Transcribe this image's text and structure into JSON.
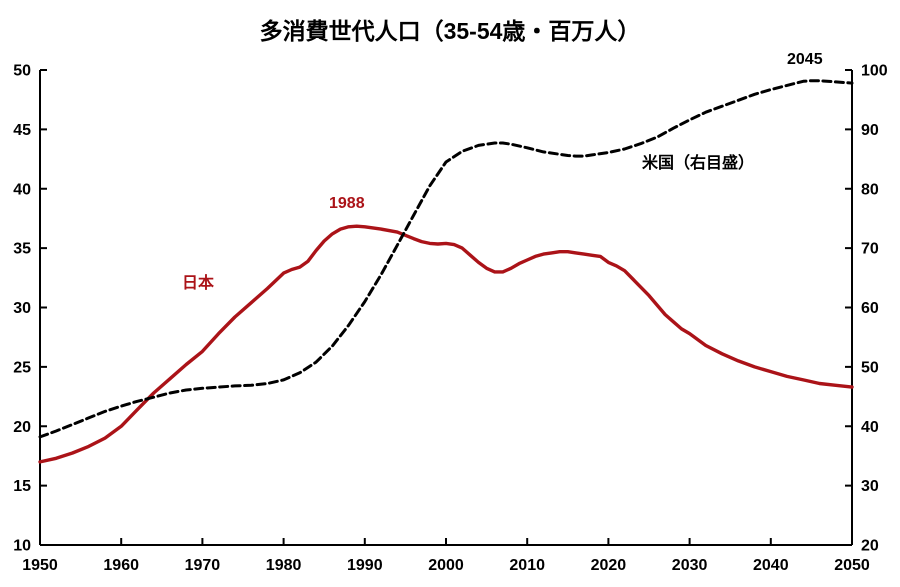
{
  "title": "多消費世代人口（35-54歳・百万人）",
  "annotations": {
    "japan_peak_year": "1988",
    "japan_label": "日本",
    "us_label": "米国（右目盛）",
    "us_peak_year": "2045"
  },
  "colors": {
    "japan_line": "#AB1318",
    "us_line": "#000000",
    "axis": "#000000",
    "background": "#ffffff"
  },
  "chart_data": {
    "type": "line",
    "title": "多消費世代人口（35-54歳・百万人）",
    "grid": "off",
    "legend": "inline-annotations",
    "x_axis": {
      "min": 1950,
      "max": 2050,
      "ticks": [
        1950,
        1960,
        1970,
        1980,
        1990,
        2000,
        2010,
        2020,
        2030,
        2040,
        2050
      ]
    },
    "y_axis_left": {
      "min": 10,
      "max": 50,
      "ticks": [
        50,
        45,
        40,
        35,
        30,
        25,
        20,
        15,
        10
      ],
      "series": "日本"
    },
    "y_axis_right": {
      "min": 20,
      "max": 100,
      "ticks": [
        100,
        90,
        80,
        70,
        60,
        50,
        40,
        30,
        20
      ],
      "series": "米国"
    },
    "series": [
      {
        "name": "日本",
        "axis": "left",
        "color": "#AB1318",
        "style": "solid",
        "peak_annotation": {
          "text": "1988",
          "year": 1988,
          "value": 36.8
        },
        "points": [
          [
            1950,
            17.0
          ],
          [
            1952,
            17.3
          ],
          [
            1954,
            17.75
          ],
          [
            1956,
            18.3
          ],
          [
            1958,
            19.0
          ],
          [
            1960,
            20.0
          ],
          [
            1962,
            21.4
          ],
          [
            1964,
            22.8
          ],
          [
            1966,
            24.0
          ],
          [
            1968,
            25.2
          ],
          [
            1970,
            26.3
          ],
          [
            1972,
            27.8
          ],
          [
            1974,
            29.2
          ],
          [
            1976,
            30.4
          ],
          [
            1978,
            31.6
          ],
          [
            1980,
            32.9
          ],
          [
            1981,
            33.2
          ],
          [
            1982,
            33.4
          ],
          [
            1983,
            33.9
          ],
          [
            1984,
            34.8
          ],
          [
            1985,
            35.6
          ],
          [
            1986,
            36.2
          ],
          [
            1987,
            36.6
          ],
          [
            1988,
            36.8
          ],
          [
            1989,
            36.85
          ],
          [
            1990,
            36.8
          ],
          [
            1992,
            36.6
          ],
          [
            1994,
            36.35
          ],
          [
            1996,
            35.8
          ],
          [
            1997,
            35.55
          ],
          [
            1998,
            35.4
          ],
          [
            1999,
            35.35
          ],
          [
            2000,
            35.4
          ],
          [
            2001,
            35.3
          ],
          [
            2002,
            35.0
          ],
          [
            2003,
            34.4
          ],
          [
            2004,
            33.8
          ],
          [
            2005,
            33.3
          ],
          [
            2006,
            33.0
          ],
          [
            2007,
            33.0
          ],
          [
            2008,
            33.3
          ],
          [
            2009,
            33.7
          ],
          [
            2010,
            34.0
          ],
          [
            2011,
            34.3
          ],
          [
            2012,
            34.5
          ],
          [
            2013,
            34.6
          ],
          [
            2014,
            34.7
          ],
          [
            2015,
            34.7
          ],
          [
            2016,
            34.6
          ],
          [
            2017,
            34.5
          ],
          [
            2018,
            34.4
          ],
          [
            2019,
            34.3
          ],
          [
            2020,
            33.8
          ],
          [
            2021,
            33.5
          ],
          [
            2022,
            33.1
          ],
          [
            2023,
            32.4
          ],
          [
            2024,
            31.7
          ],
          [
            2025,
            31.0
          ],
          [
            2026,
            30.2
          ],
          [
            2027,
            29.4
          ],
          [
            2028,
            28.8
          ],
          [
            2029,
            28.2
          ],
          [
            2030,
            27.8
          ],
          [
            2032,
            26.8
          ],
          [
            2034,
            26.1
          ],
          [
            2036,
            25.5
          ],
          [
            2038,
            25.0
          ],
          [
            2040,
            24.6
          ],
          [
            2042,
            24.2
          ],
          [
            2044,
            23.9
          ],
          [
            2046,
            23.6
          ],
          [
            2048,
            23.45
          ],
          [
            2050,
            23.3
          ]
        ]
      },
      {
        "name": "米国（右目盛）",
        "axis": "right",
        "color": "#000000",
        "style": "dashed",
        "peak_annotation": {
          "text": "2045",
          "year": 2045,
          "value": 98.2
        },
        "points": [
          [
            1950,
            38.2
          ],
          [
            1952,
            39.2
          ],
          [
            1954,
            40.3
          ],
          [
            1956,
            41.4
          ],
          [
            1958,
            42.5
          ],
          [
            1960,
            43.4
          ],
          [
            1962,
            44.2
          ],
          [
            1964,
            44.9
          ],
          [
            1966,
            45.6
          ],
          [
            1968,
            46.1
          ],
          [
            1970,
            46.4
          ],
          [
            1972,
            46.6
          ],
          [
            1974,
            46.8
          ],
          [
            1976,
            46.9
          ],
          [
            1978,
            47.2
          ],
          [
            1980,
            47.8
          ],
          [
            1982,
            49.0
          ],
          [
            1984,
            50.8
          ],
          [
            1986,
            53.5
          ],
          [
            1988,
            57.0
          ],
          [
            1990,
            61.0
          ],
          [
            1992,
            65.5
          ],
          [
            1994,
            70.5
          ],
          [
            1996,
            75.5
          ],
          [
            1998,
            80.5
          ],
          [
            2000,
            84.5
          ],
          [
            2002,
            86.3
          ],
          [
            2004,
            87.3
          ],
          [
            2005,
            87.5
          ],
          [
            2006,
            87.7
          ],
          [
            2007,
            87.7
          ],
          [
            2008,
            87.5
          ],
          [
            2010,
            86.9
          ],
          [
            2012,
            86.2
          ],
          [
            2014,
            85.8
          ],
          [
            2015,
            85.6
          ],
          [
            2016,
            85.5
          ],
          [
            2017,
            85.5
          ],
          [
            2018,
            85.7
          ],
          [
            2020,
            86.1
          ],
          [
            2022,
            86.7
          ],
          [
            2024,
            87.6
          ],
          [
            2026,
            88.7
          ],
          [
            2028,
            90.2
          ],
          [
            2030,
            91.6
          ],
          [
            2032,
            92.9
          ],
          [
            2034,
            93.9
          ],
          [
            2036,
            94.9
          ],
          [
            2038,
            95.9
          ],
          [
            2040,
            96.7
          ],
          [
            2042,
            97.4
          ],
          [
            2044,
            98.1
          ],
          [
            2045,
            98.2
          ],
          [
            2046,
            98.2
          ],
          [
            2048,
            98.0
          ],
          [
            2050,
            97.8
          ]
        ]
      }
    ]
  }
}
